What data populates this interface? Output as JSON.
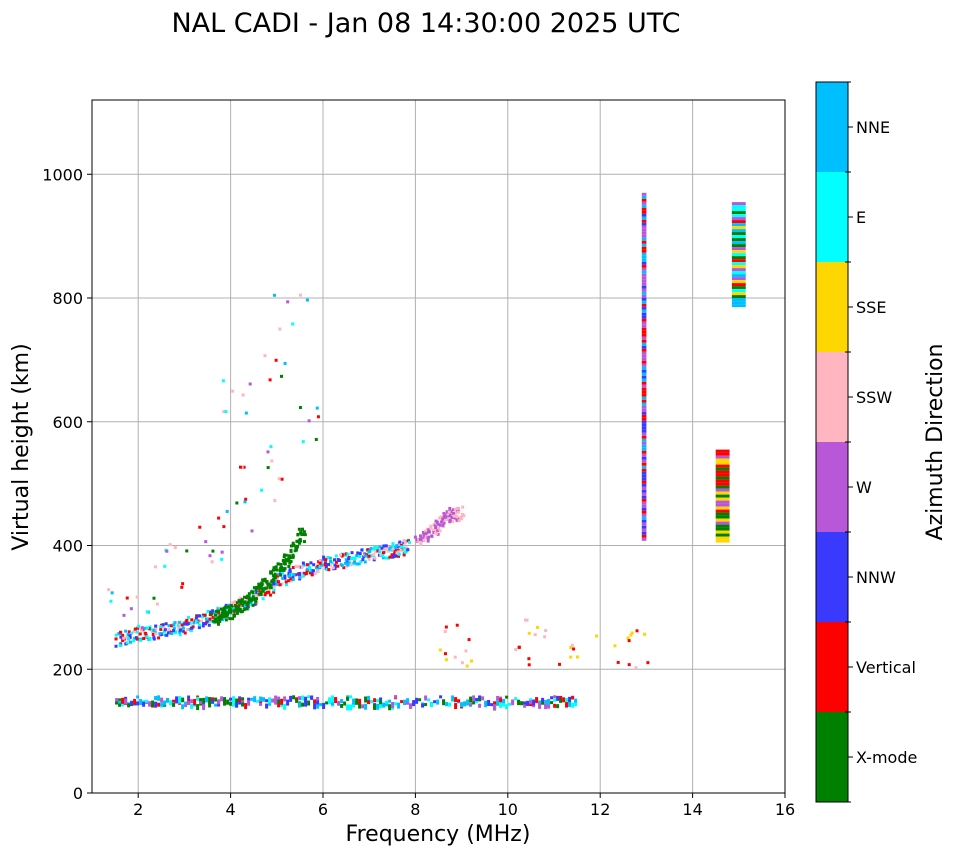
{
  "chart_data": {
    "type": "scatter",
    "title": "NAL CADI - Jan 08 14:30:00 2025 UTC",
    "xlabel": "Frequency (MHz)",
    "ylabel": "Virtual height (km)",
    "xlim": [
      1,
      16
    ],
    "ylim": [
      0,
      1120
    ],
    "xticks": [
      2,
      4,
      6,
      8,
      10,
      12,
      14,
      16
    ],
    "yticks": [
      0,
      200,
      400,
      600,
      800,
      1000
    ],
    "grid": true,
    "colorbar": {
      "title": "Azimuth Direction",
      "categories": [
        {
          "label": "X-mode",
          "color": "#008000"
        },
        {
          "label": "Vertical",
          "color": "#ff0000"
        },
        {
          "label": "NNW",
          "color": "#3a3aff"
        },
        {
          "label": "W",
          "color": "#b857d8"
        },
        {
          "label": "SSW",
          "color": "#ffb6c1"
        },
        {
          "label": "SSE",
          "color": "#ffd700"
        },
        {
          "label": "E",
          "color": "#00ffff"
        },
        {
          "label": "NNE",
          "color": "#00bfff"
        }
      ]
    },
    "series": [
      {
        "name": "E-layer echoes",
        "type": "band",
        "x": [
          1.5,
          11.5
        ],
        "y": [
          143,
          158
        ],
        "colors": [
          "NNW",
          "NNE",
          "Vertical",
          "W",
          "X-mode",
          "E"
        ]
      },
      {
        "name": "F-layer O-trace (low)",
        "type": "curve",
        "x": [
          1.5,
          2.0,
          2.5,
          3.0,
          3.5,
          4.0,
          4.5,
          5.0,
          5.5,
          6.0,
          6.5,
          7.0,
          7.5,
          7.8
        ],
        "y": [
          250,
          258,
          265,
          272,
          285,
          298,
          318,
          345,
          362,
          372,
          380,
          388,
          395,
          400
        ],
        "colors": [
          "Vertical",
          "NNE",
          "SSW",
          "NNW",
          "E"
        ]
      },
      {
        "name": "F-layer X-mode trace",
        "type": "curve",
        "x": [
          3.6,
          4.0,
          4.4,
          4.8,
          5.2,
          5.6
        ],
        "y": [
          285,
          295,
          315,
          345,
          380,
          430
        ],
        "colors": [
          "X-mode"
        ]
      },
      {
        "name": "Spread F scatter",
        "type": "scatter",
        "x": [
          1.6,
          2.0,
          2.5,
          3.0,
          3.5,
          4.0,
          4.5,
          5.0,
          5.5,
          4.2,
          4.8,
          5.2
        ],
        "y": [
          320,
          300,
          340,
          380,
          400,
          450,
          500,
          540,
          600,
          640,
          690,
          780
        ],
        "colors": [
          "E",
          "NNE",
          "X-mode",
          "Vertical",
          "SSW",
          "W"
        ]
      },
      {
        "name": "Oblique F trace",
        "type": "curve",
        "x": [
          8.0,
          8.4,
          8.7,
          9.0
        ],
        "y": [
          410,
          430,
          450,
          455
        ],
        "colors": [
          "W",
          "SSW"
        ]
      },
      {
        "name": "Oblique 250 km echoes",
        "type": "scatter",
        "x": [
          8.5,
          9.0,
          10.5,
          10.8,
          11.2,
          12.3,
          13.0
        ],
        "y": [
          245,
          235,
          250,
          240,
          245,
          235,
          235
        ],
        "colors": [
          "Vertical",
          "SSW",
          "SSE"
        ]
      },
      {
        "name": "13 MHz column",
        "type": "column",
        "x": [
          12.9,
          13.0
        ],
        "y": [
          410,
          970
        ],
        "colors": [
          "W",
          "NNE",
          "Vertical",
          "NNW"
        ]
      },
      {
        "name": "15 MHz column upper",
        "type": "column",
        "x": [
          14.85,
          15.15
        ],
        "y": [
          790,
          955
        ],
        "colors": [
          "X-mode",
          "Vertical",
          "E",
          "SSE",
          "W",
          "NNE"
        ]
      },
      {
        "name": "15 MHz column lower",
        "type": "column",
        "x": [
          14.5,
          14.8
        ],
        "y": [
          405,
          555
        ],
        "colors": [
          "X-mode",
          "Vertical",
          "SSE",
          "W"
        ]
      }
    ]
  }
}
